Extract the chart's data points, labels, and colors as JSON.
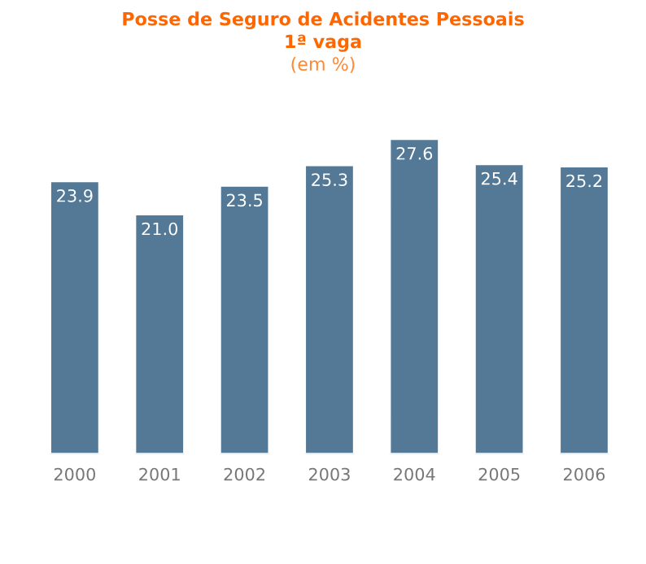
{
  "chart_data": {
    "type": "bar",
    "title": "Posse de Seguro de Acidentes Pessoais",
    "subtitle": "1ª vaga",
    "annotations": [
      "(em %)"
    ],
    "categories": [
      "2000",
      "2001",
      "2002",
      "2003",
      "2004",
      "2005",
      "2006"
    ],
    "values": [
      23.9,
      21.0,
      23.5,
      25.3,
      27.6,
      25.4,
      25.2
    ],
    "value_labels": [
      "23.9",
      "21.0",
      "23.5",
      "25.3",
      "27.6",
      "25.4",
      "25.2"
    ],
    "color": "#537996",
    "grid": false,
    "legend": false
  }
}
